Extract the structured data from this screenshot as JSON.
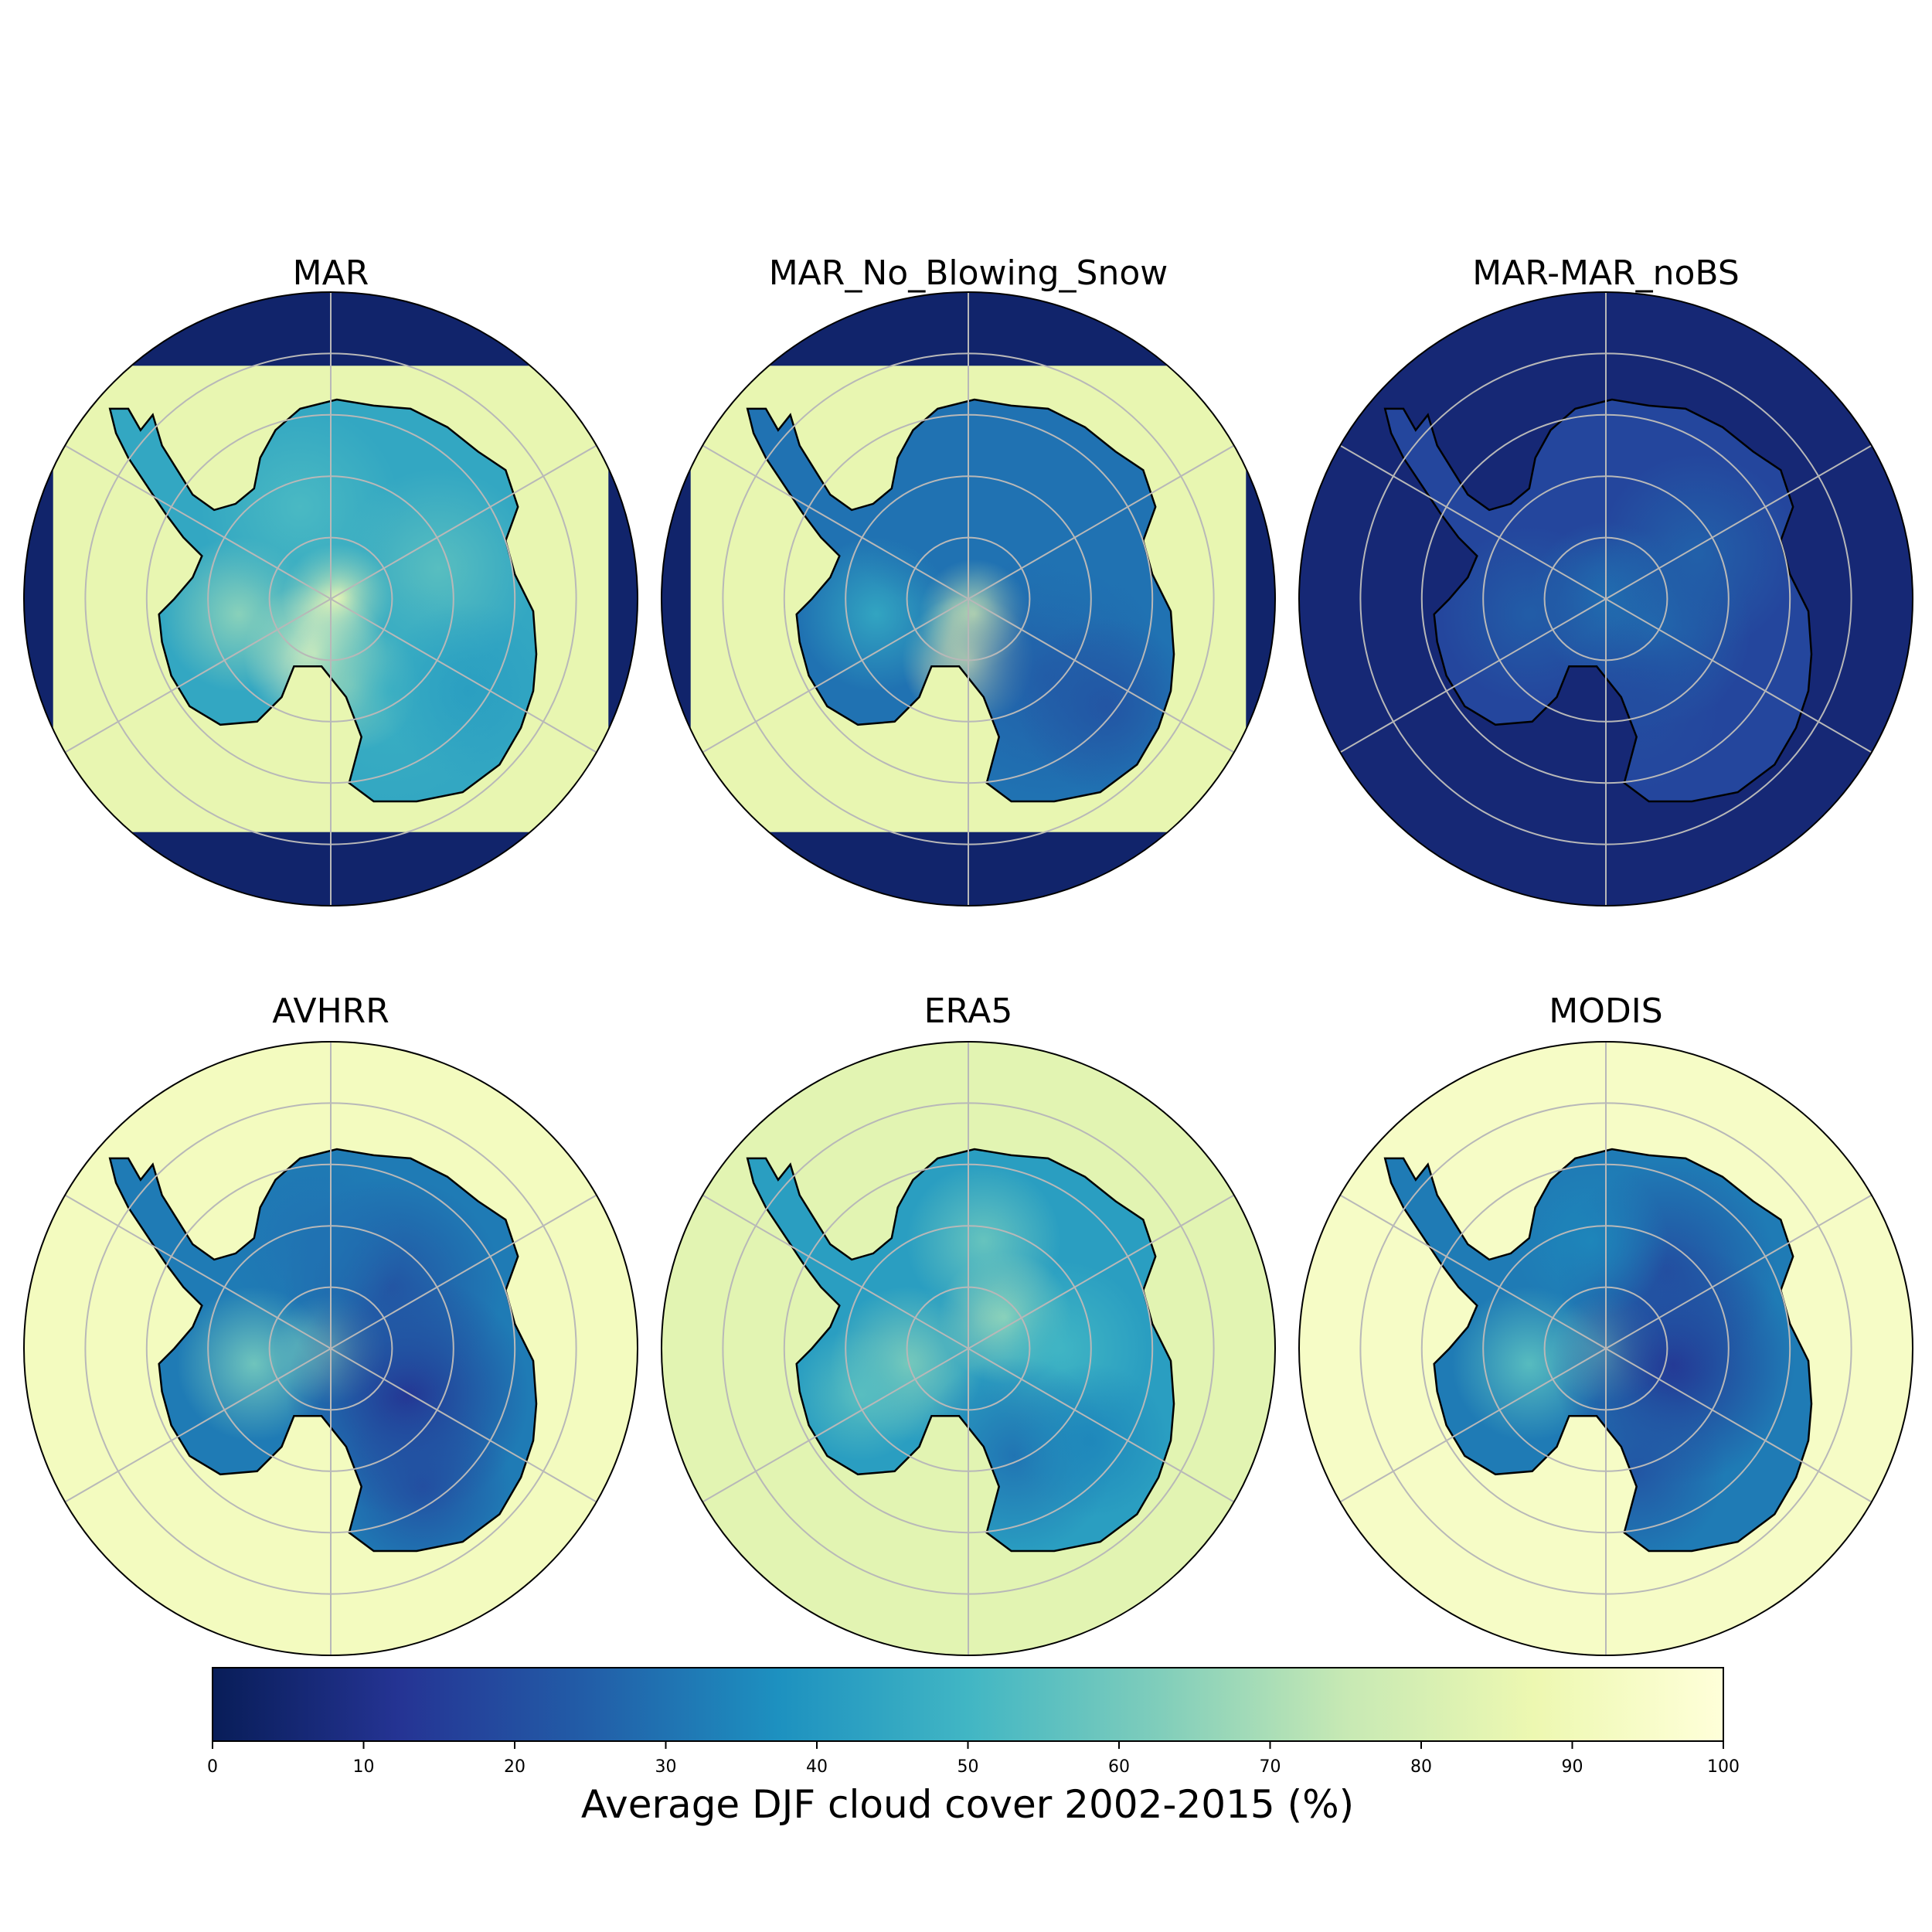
{
  "panels": [
    {
      "title": "MAR",
      "kind": "model"
    },
    {
      "title": "MAR_No_Blowing_Snow",
      "kind": "model_nobs"
    },
    {
      "title": "MAR-MAR_noBS",
      "kind": "difference"
    },
    {
      "title": "AVHRR",
      "kind": "obs_avhrr"
    },
    {
      "title": "ERA5",
      "kind": "reanalysis"
    },
    {
      "title": "MODIS",
      "kind": "obs_modis"
    }
  ],
  "colorbar": {
    "label": "Average DJF cloud cover 2002-2015 (%)",
    "ticks": [
      "0",
      "10",
      "20",
      "30",
      "40",
      "50",
      "60",
      "70",
      "80",
      "90",
      "100"
    ],
    "range": [
      0,
      100
    ],
    "colormap": "YlGnBu_r",
    "stops": [
      "#081d58",
      "#253494",
      "#225ea8",
      "#1d91c0",
      "#41b6c4",
      "#7fcdbb",
      "#c7e9b4",
      "#edf8b1",
      "#ffffd9"
    ]
  },
  "colors": {
    "graticule": "#b8b8b8",
    "coastline": "#000000",
    "border": "#000000"
  }
}
